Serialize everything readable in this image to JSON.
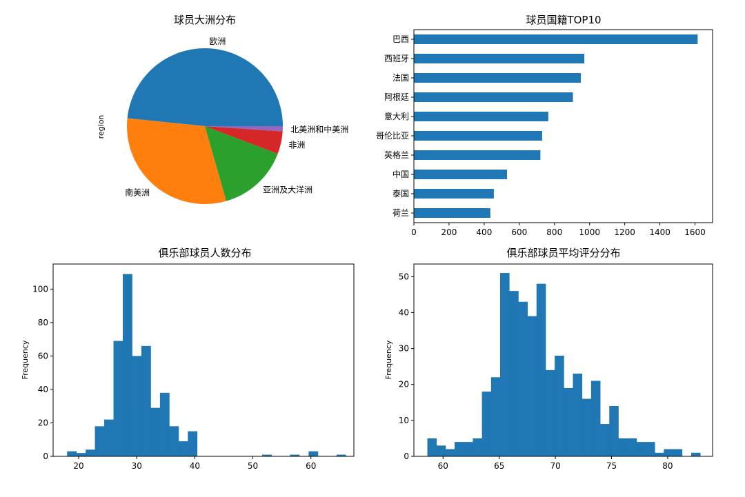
{
  "chart_data": [
    {
      "type": "pie",
      "title": "球员大洲分布",
      "ylabel": "region",
      "categories": [
        "欧洲",
        "南美洲",
        "亚洲及大洋洲",
        "非洲",
        "北美洲和中美洲"
      ],
      "values": [
        6700,
        4300,
        2050,
        650,
        150
      ],
      "colors": [
        "#1f77b4",
        "#ff7f0e",
        "#2ca02c",
        "#d62728",
        "#9467bd"
      ]
    },
    {
      "type": "bar",
      "orientation": "horizontal",
      "title": "球员国籍TOP10",
      "categories": [
        "巴西",
        "西班牙",
        "法国",
        "阿根廷",
        "意大利",
        "哥伦比亚",
        "英格兰",
        "中国",
        "泰国",
        "荷兰"
      ],
      "values": [
        1615,
        970,
        950,
        905,
        765,
        730,
        720,
        530,
        455,
        435
      ],
      "xlim": [
        0,
        1700
      ],
      "xticks": [
        "0",
        "200",
        "400",
        "600",
        "800",
        "1000",
        "1200",
        "1400",
        "1600"
      ],
      "color": "#1f77b4"
    },
    {
      "type": "bar",
      "subtype": "histogram",
      "title": "俱乐部球员人数分布",
      "ylabel": "Frequency",
      "bin_start": 18,
      "bin_width": 1.6,
      "values": [
        3,
        2,
        4,
        18,
        22,
        69,
        109,
        60,
        66,
        29,
        38,
        18,
        9,
        15,
        0,
        0,
        0,
        0,
        0,
        0,
        0,
        1,
        0,
        0,
        1,
        0,
        3,
        0,
        0,
        1
      ],
      "xlim": [
        15.6,
        67.4
      ],
      "ylim": [
        0,
        115
      ],
      "xticks": [
        "20",
        "30",
        "40",
        "50",
        "60"
      ],
      "yticks": [
        "0",
        "20",
        "40",
        "60",
        "80",
        "100"
      ],
      "color": "#1f77b4"
    },
    {
      "type": "bar",
      "subtype": "histogram",
      "title": "俱乐部球员平均评分分布",
      "ylabel": "Frequency",
      "bin_start": 58.6,
      "bin_width": 0.81,
      "values": [
        5,
        3,
        2,
        4,
        4,
        5,
        18,
        22,
        51,
        46,
        43,
        39,
        48,
        24,
        28,
        19,
        23,
        16,
        21,
        9,
        14,
        5,
        5,
        4,
        4,
        1,
        2,
        2,
        0,
        1
      ],
      "xlim": [
        57.4,
        84.0
      ],
      "ylim": [
        0,
        53.5
      ],
      "xticks": [
        "60",
        "65",
        "70",
        "75",
        "80"
      ],
      "yticks": [
        "0",
        "10",
        "20",
        "30",
        "40",
        "50"
      ],
      "color": "#1f77b4"
    }
  ]
}
